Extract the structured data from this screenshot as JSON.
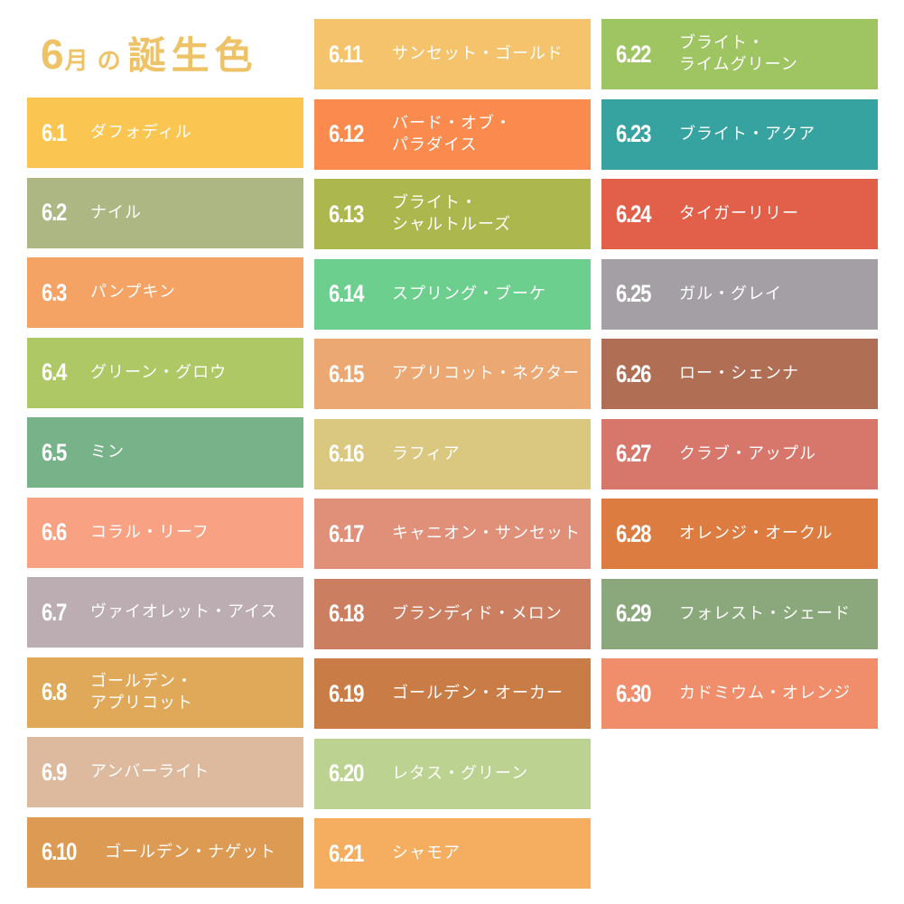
{
  "title": {
    "month": "6",
    "month_kanji": "月",
    "particle": "の",
    "label": "誕生色",
    "color": "#eec267"
  },
  "columns": [
    {
      "items": [
        {
          "code": "6.1",
          "name": "ダフォディル",
          "color": "#fbc552"
        },
        {
          "code": "6.2",
          "name": "ナイル",
          "color": "#acb783"
        },
        {
          "code": "6.3",
          "name": "パンプキン",
          "color": "#f5a265"
        },
        {
          "code": "6.4",
          "name": "グリーン・グロウ",
          "color": "#adc865"
        },
        {
          "code": "6.5",
          "name": "ミン",
          "color": "#77b288"
        },
        {
          "code": "6.6",
          "name": "コラル・リーフ",
          "color": "#f8a283"
        },
        {
          "code": "6.7",
          "name": "ヴァイオレット・アイス",
          "color": "#bbadb1"
        },
        {
          "code": "6.8",
          "name": "ゴールデン・\nアプリコット",
          "color": "#e0a95a"
        },
        {
          "code": "6.9",
          "name": "アンバーライト",
          "color": "#ddb99d"
        },
        {
          "code": "6.10",
          "name": "ゴールデン・ナゲット",
          "color": "#dc9a53"
        }
      ]
    },
    {
      "items": [
        {
          "code": "6.11",
          "name": "サンセット・ゴールド",
          "color": "#f5c36c"
        },
        {
          "code": "6.12",
          "name": "バード・オブ・\nパラダイス",
          "color": "#fb8a4e"
        },
        {
          "code": "6.13",
          "name": "ブライト・\nシャルトルーズ",
          "color": "#acb84e"
        },
        {
          "code": "6.14",
          "name": "スプリング・ブーケ",
          "color": "#6ccf8d"
        },
        {
          "code": "6.15",
          "name": "アプリコット・ネクター",
          "color": "#eba873"
        },
        {
          "code": "6.16",
          "name": "ラフィア",
          "color": "#dac780"
        },
        {
          "code": "6.17",
          "name": "キャニオン・サンセット",
          "color": "#e08f78"
        },
        {
          "code": "6.18",
          "name": "ブランディド・メロン",
          "color": "#cc7e61"
        },
        {
          "code": "6.19",
          "name": "ゴールデン・オーカー",
          "color": "#c97c45"
        },
        {
          "code": "6.20",
          "name": "レタス・グリーン",
          "color": "#bcd290"
        },
        {
          "code": "6.21",
          "name": "シャモア",
          "color": "#f5ad60"
        }
      ]
    },
    {
      "items": [
        {
          "code": "6.22",
          "name": "ブライト・\nライムグリーン",
          "color": "#9fc462"
        },
        {
          "code": "6.23",
          "name": "ブライト・アクア",
          "color": "#36a3a0"
        },
        {
          "code": "6.24",
          "name": "タイガーリリー",
          "color": "#e2604a"
        },
        {
          "code": "6.25",
          "name": "ガル・グレイ",
          "color": "#a39fa4"
        },
        {
          "code": "6.26",
          "name": "ロー・シェンナ",
          "color": "#b06f54"
        },
        {
          "code": "6.27",
          "name": "クラブ・アップル",
          "color": "#d7766b"
        },
        {
          "code": "6.28",
          "name": "オレンジ・オークル",
          "color": "#dc7c41"
        },
        {
          "code": "6.29",
          "name": "フォレスト・シェード",
          "color": "#8aa87b"
        },
        {
          "code": "6.30",
          "name": "カドミウム・オレンジ",
          "color": "#f08d6b"
        }
      ]
    }
  ]
}
